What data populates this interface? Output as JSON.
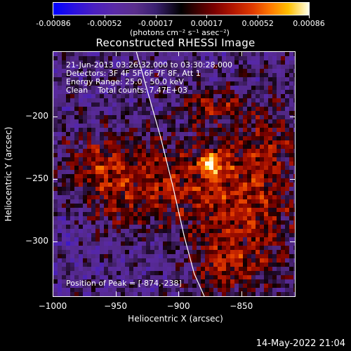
{
  "colorbar": {
    "ticks": [
      "-0.00086",
      "-0.00052",
      "-0.00017",
      "0.00017",
      "0.00052",
      "0.00086"
    ],
    "units": "(photons cm⁻² s⁻¹ asec⁻²)"
  },
  "title": "Reconstructed RHESSI Image",
  "info": {
    "line1": "21-Jun-2013 03:26:32.000 to 03:30:28.000",
    "line2": "Detectors: 3F 4F 5F 6F 7F 8F, Att 1",
    "line3": "Energy Range: 25.0 - 50.0 keV",
    "line4": "Clean    Total counts: 7.47E+03",
    "peak": "Position of Peak = [-874,-238]"
  },
  "footer": {
    "timestamp": "14-May-2022 21:04"
  },
  "chart_data": {
    "type": "heatmap",
    "title": "Reconstructed RHESSI Image",
    "xlabel": "Heliocentric X (arcsec)",
    "ylabel": "Heliocentric Y (arcsec)",
    "xlim": [
      -1000,
      -808
    ],
    "ylim": [
      -343,
      -148
    ],
    "xticks": [
      "−1000",
      "−950",
      "−900",
      "−850"
    ],
    "yticks": [
      "−200",
      "−250",
      "−300"
    ],
    "xtick_values": [
      -1000,
      -950,
      -900,
      -850
    ],
    "ytick_values": [
      -200,
      -250,
      -300
    ],
    "colorbar_range": [
      -0.00086,
      0.00086
    ],
    "peak_position": [
      -874,
      -238
    ],
    "limb_curve_x": [
      -934,
      -925,
      -915,
      -905,
      -896,
      -888,
      -880
    ],
    "limb_curve_y": [
      -148,
      -180,
      -215,
      -255,
      -295,
      -325,
      -343
    ],
    "colors": {
      "limb": "#ffffff",
      "background": "#000000"
    }
  }
}
